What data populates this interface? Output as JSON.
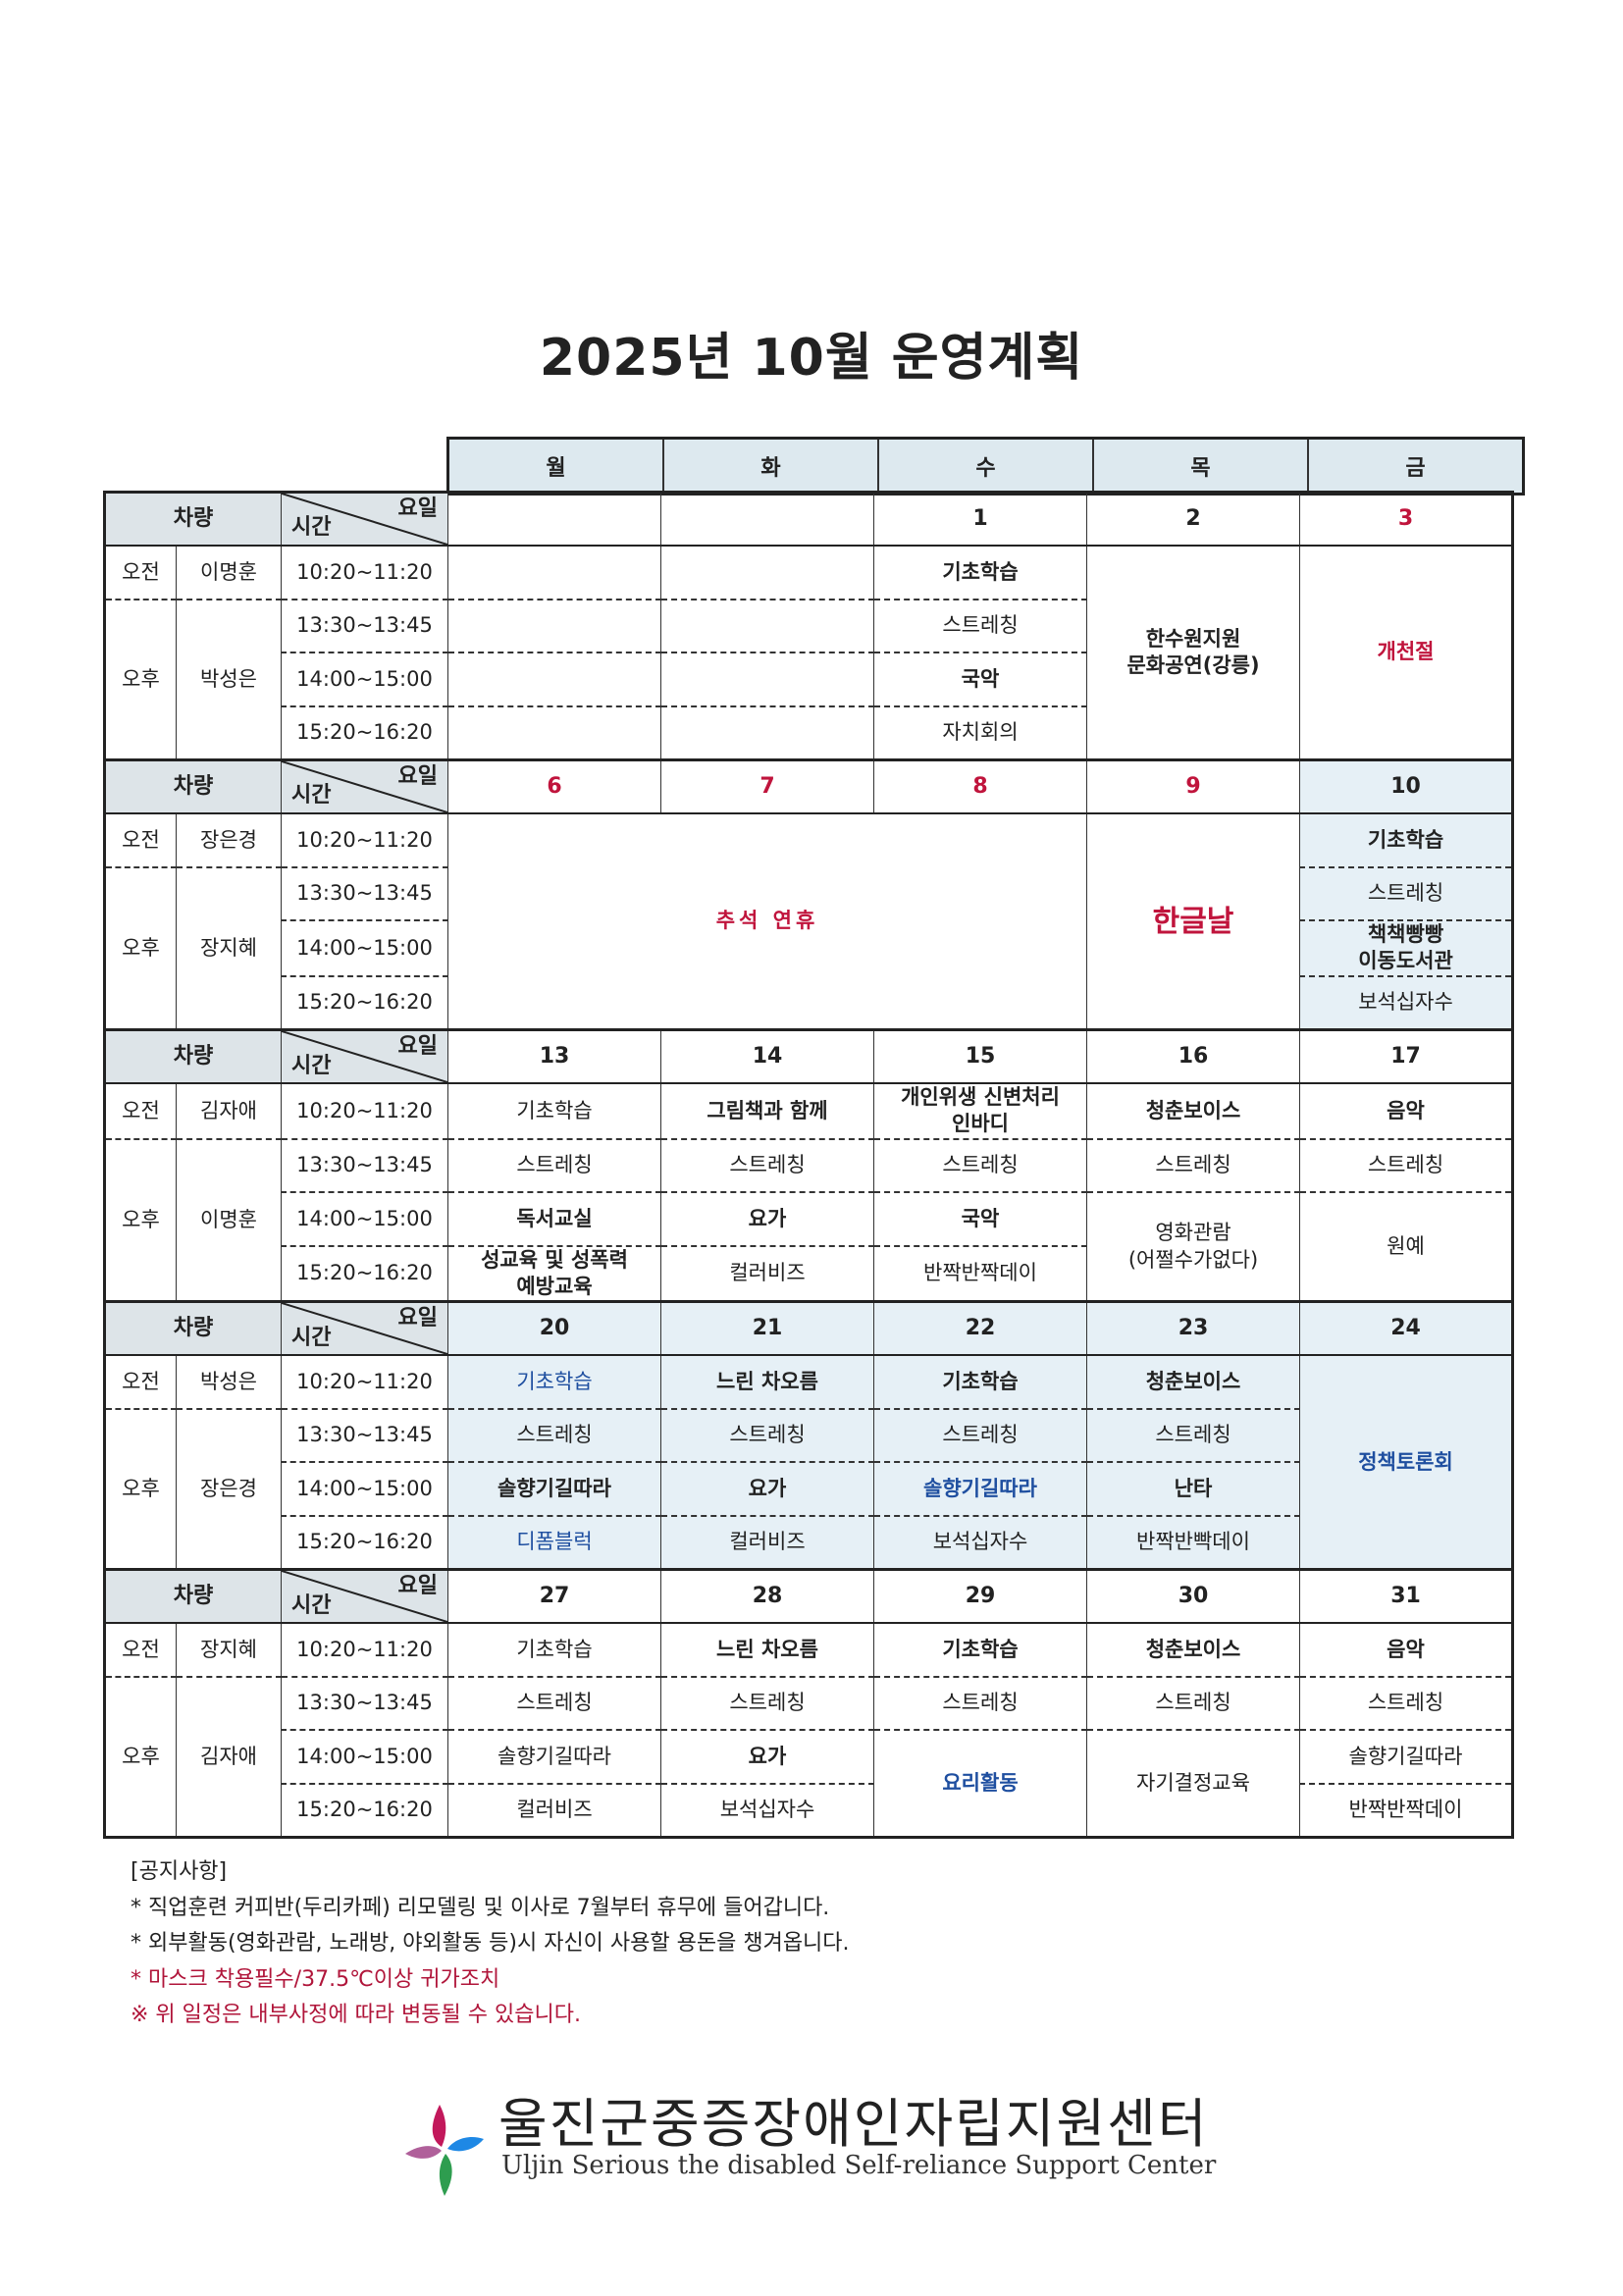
{
  "title": "2025년 10월 운영계획",
  "weekdays": [
    "월",
    "화",
    "수",
    "목",
    "금"
  ],
  "labels": {
    "car": "차량",
    "yoil": "요일",
    "sigan": "시간",
    "am": "오전",
    "pm": "오후"
  },
  "times": [
    "10:20~11:20",
    "13:30~13:45",
    "14:00~15:00",
    "15:20~16:20"
  ],
  "colors": {
    "red": "#c0143c",
    "blue": "#1f4fa0",
    "black": "#222222",
    "lightblue": "#e6f0f6"
  },
  "weeks": [
    {
      "am_driver": "이명훈",
      "pm_driver": "박성은",
      "days": [
        {
          "date": "",
          "slots": [
            {
              "t": ""
            },
            {
              "t": ""
            },
            {
              "t": ""
            },
            {
              "t": ""
            }
          ]
        },
        {
          "date": "",
          "slots": [
            {
              "t": ""
            },
            {
              "t": ""
            },
            {
              "t": ""
            },
            {
              "t": ""
            }
          ]
        },
        {
          "date": "1",
          "slots": [
            {
              "t": "기초학습",
              "b": 1
            },
            {
              "t": "스트레칭"
            },
            {
              "t": "국악",
              "b": 1
            },
            {
              "t": "자치회의"
            }
          ]
        },
        {
          "date": "2",
          "slots": [
            {
              "t": "한수원지원\n문화공연(강릉)",
              "rs": 4,
              "b": 1
            }
          ]
        },
        {
          "date": "3",
          "dc": "red",
          "slots": [
            {
              "t": "개천절",
              "rs": 4,
              "b": 1,
              "c": "red"
            }
          ]
        }
      ]
    },
    {
      "am_driver": "장은경",
      "pm_driver": "장지혜",
      "days": [
        {
          "date": "6",
          "dc": "red",
          "slots": [
            {
              "t": "추석 연휴",
              "rs": 4,
              "cs": 3,
              "c": "red",
              "big": 1
            }
          ]
        },
        {
          "date": "7",
          "dc": "red",
          "slots": []
        },
        {
          "date": "8",
          "dc": "red",
          "slots": []
        },
        {
          "date": "9",
          "dc": "red",
          "slots": [
            {
              "t": "한글날",
              "rs": 4,
              "c": "red",
              "b": 1,
              "lg": 1
            }
          ]
        },
        {
          "date": "10",
          "bg": "lightblue",
          "slots": [
            {
              "t": "기초학습",
              "b": 1
            },
            {
              "t": "스트레칭"
            },
            {
              "t": "책책빵빵\n이동도서관",
              "b": 1
            },
            {
              "t": "보석십자수"
            }
          ]
        }
      ]
    },
    {
      "am_driver": "김자애",
      "pm_driver": "이명훈",
      "days": [
        {
          "date": "13",
          "slots": [
            {
              "t": "기초학습"
            },
            {
              "t": "스트레칭"
            },
            {
              "t": "독서교실",
              "b": 1
            },
            {
              "t": "성교육 및 성폭력\n예방교육",
              "b": 1,
              "sm": 1
            }
          ]
        },
        {
          "date": "14",
          "slots": [
            {
              "t": "그림책과 함께",
              "b": 1
            },
            {
              "t": "스트레칭"
            },
            {
              "t": "요가",
              "b": 1
            },
            {
              "t": "컬러비즈"
            }
          ]
        },
        {
          "date": "15",
          "slots": [
            {
              "t": "개인위생 신변처리\n인바디",
              "b": 1,
              "sm": 1
            },
            {
              "t": "스트레칭"
            },
            {
              "t": "국악",
              "b": 1
            },
            {
              "t": "반짝반짝데이"
            }
          ]
        },
        {
          "date": "16",
          "slots": [
            {
              "t": "청춘보이스",
              "b": 1
            },
            {
              "t": "스트레칭"
            },
            {
              "t": "영화관람\n(어쩔수가없다)",
              "rs": 2
            }
          ]
        },
        {
          "date": "17",
          "slots": [
            {
              "t": "음악",
              "b": 1
            },
            {
              "t": "스트레칭"
            },
            {
              "t": "원예",
              "rs": 2
            }
          ]
        }
      ]
    },
    {
      "am_driver": "박성은",
      "pm_driver": "장은경",
      "bg": "lightblue",
      "days": [
        {
          "date": "20",
          "slots": [
            {
              "t": "기초학습",
              "c": "blue"
            },
            {
              "t": "스트레칭"
            },
            {
              "t": "솔향기길따라",
              "b": 1
            },
            {
              "t": "디폼블럭",
              "c": "blue"
            }
          ]
        },
        {
          "date": "21",
          "slots": [
            {
              "t": "느린 차오름",
              "b": 1
            },
            {
              "t": "스트레칭"
            },
            {
              "t": "요가",
              "b": 1
            },
            {
              "t": "컬러비즈"
            }
          ]
        },
        {
          "date": "22",
          "slots": [
            {
              "t": "기초학습",
              "b": 1
            },
            {
              "t": "스트레칭"
            },
            {
              "t": "솔향기길따라",
              "b": 1,
              "c": "blue"
            },
            {
              "t": "보석십자수"
            }
          ]
        },
        {
          "date": "23",
          "slots": [
            {
              "t": "청춘보이스",
              "b": 1
            },
            {
              "t": "스트레칭"
            },
            {
              "t": "난타",
              "b": 1
            },
            {
              "t": "반짝반빡데이"
            }
          ]
        },
        {
          "date": "24",
          "slots": [
            {
              "t": "정책토론회",
              "rs": 4,
              "b": 1,
              "c": "blue"
            }
          ]
        }
      ]
    },
    {
      "am_driver": "장지혜",
      "pm_driver": "김자애",
      "days": [
        {
          "date": "27",
          "slots": [
            {
              "t": "기초학습"
            },
            {
              "t": "스트레칭"
            },
            {
              "t": "솔향기길따라"
            },
            {
              "t": "컬러비즈"
            }
          ]
        },
        {
          "date": "28",
          "slots": [
            {
              "t": "느린 차오름",
              "b": 1
            },
            {
              "t": "스트레칭"
            },
            {
              "t": "요가",
              "b": 1
            },
            {
              "t": "보석십자수"
            }
          ]
        },
        {
          "date": "29",
          "slots": [
            {
              "t": "기초학습",
              "b": 1
            },
            {
              "t": "스트레칭"
            },
            {
              "t": "요리활동",
              "rs": 2,
              "b": 1,
              "c": "blue"
            }
          ]
        },
        {
          "date": "30",
          "slots": [
            {
              "t": "청춘보이스",
              "b": 1
            },
            {
              "t": "스트레칭"
            },
            {
              "t": "자기결정교육",
              "rs": 2
            }
          ]
        },
        {
          "date": "31",
          "slots": [
            {
              "t": "음악",
              "b": 1
            },
            {
              "t": "스트레칭"
            },
            {
              "t": "솔향기길따라"
            },
            {
              "t": "반짝반짝데이"
            }
          ]
        }
      ]
    }
  ],
  "notices": {
    "heading": "[공지사항]",
    "items": [
      {
        "text": "* 직업훈련 커피반(두리카페) 리모델링 및 이사로 7월부터 휴무에 들어갑니다.",
        "color": "#222222"
      },
      {
        "text": "* 외부활동(영화관람, 노래방, 야외활동 등)시 자신이 사용할 용돈을 챙겨옵니다.",
        "color": "#222222"
      },
      {
        "text": "* 마스크 착용필수/37.5℃이상 귀가조치",
        "color": "#b0153a"
      },
      {
        "text": "※ 위 일정은 내부사정에 따라 변동될 수 있습니다.",
        "color": "#b0153a"
      }
    ]
  },
  "footer": {
    "org_kr": "울진군중증장애인자립지원센터",
    "org_en": "Uljin Serious the disabled Self-reliance Support Center"
  }
}
